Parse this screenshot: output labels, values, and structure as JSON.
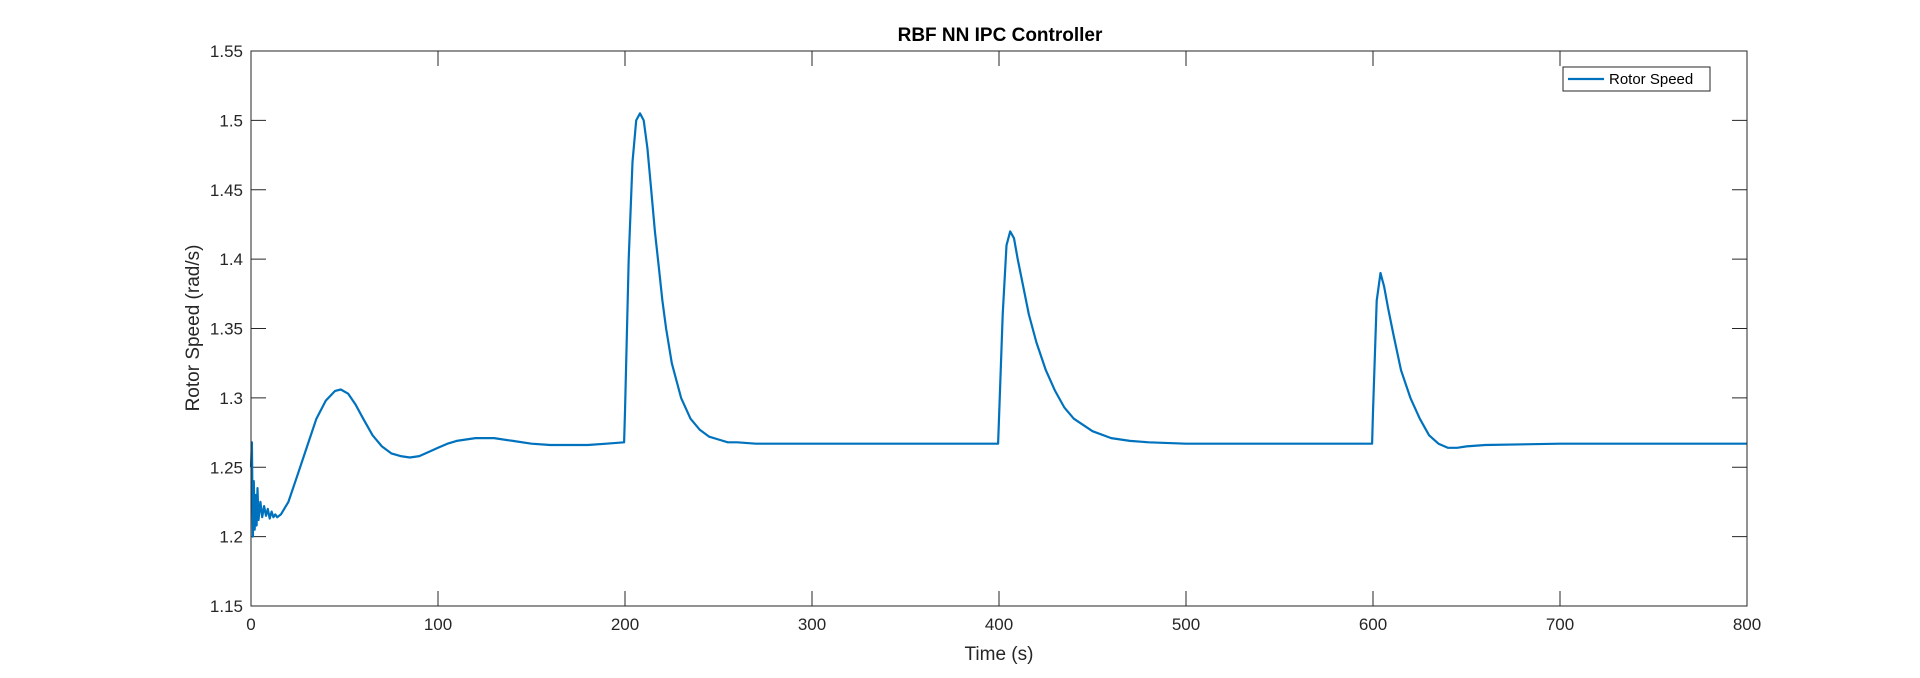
{
  "chart_data": {
    "type": "line",
    "title": "RBF NN IPC Controller",
    "xlabel": "Time (s)",
    "ylabel": "Rotor Speed (rad/s)",
    "xlim": [
      0,
      800
    ],
    "ylim": [
      1.15,
      1.55
    ],
    "xticks": [
      0,
      100,
      200,
      300,
      400,
      500,
      600,
      700,
      800
    ],
    "yticks": [
      1.15,
      1.2,
      1.25,
      1.3,
      1.35,
      1.4,
      1.45,
      1.5,
      1.55
    ],
    "xtick_labels": [
      "0",
      "100",
      "200",
      "300",
      "400",
      "500",
      "600",
      "700",
      "800"
    ],
    "ytick_labels": [
      "1.15",
      "1.2",
      "1.25",
      "1.3",
      "1.35",
      "1.4",
      "1.45",
      "1.5",
      "1.55"
    ],
    "grid": false,
    "legend_position": "top-right",
    "series": [
      {
        "name": "Rotor Speed",
        "color": "#0072BD",
        "x": [
          0,
          0.5,
          1,
          1.5,
          2,
          2.5,
          3,
          3.5,
          4,
          5,
          6,
          7,
          8,
          9,
          10,
          11,
          12,
          13,
          14,
          16,
          20,
          25,
          30,
          35,
          40,
          45,
          48,
          52,
          56,
          60,
          65,
          70,
          75,
          80,
          85,
          90,
          95,
          100,
          105,
          110,
          115,
          120,
          125,
          130,
          140,
          150,
          160,
          170,
          180,
          190,
          199.5,
          200,
          202,
          204,
          206,
          208,
          210,
          212,
          214,
          216,
          218,
          220,
          222,
          225,
          230,
          235,
          240,
          245,
          250,
          255,
          260,
          270,
          300,
          350,
          399.5,
          400,
          402,
          404,
          406,
          408,
          410,
          413,
          416,
          420,
          425,
          430,
          435,
          440,
          450,
          460,
          470,
          480,
          500,
          550,
          599.5,
          600,
          602,
          604,
          606,
          608,
          611,
          615,
          620,
          625,
          630,
          635,
          640,
          645,
          650,
          660,
          700,
          750,
          800
        ],
        "y": [
          1.25,
          1.268,
          1.2,
          1.24,
          1.205,
          1.23,
          1.208,
          1.235,
          1.212,
          1.225,
          1.214,
          1.222,
          1.215,
          1.22,
          1.213,
          1.218,
          1.214,
          1.216,
          1.214,
          1.216,
          1.225,
          1.245,
          1.265,
          1.285,
          1.298,
          1.305,
          1.306,
          1.303,
          1.295,
          1.285,
          1.273,
          1.265,
          1.26,
          1.258,
          1.257,
          1.258,
          1.261,
          1.264,
          1.267,
          1.269,
          1.27,
          1.271,
          1.271,
          1.271,
          1.269,
          1.267,
          1.266,
          1.266,
          1.266,
          1.267,
          1.268,
          1.29,
          1.4,
          1.47,
          1.5,
          1.505,
          1.5,
          1.48,
          1.45,
          1.42,
          1.395,
          1.37,
          1.35,
          1.325,
          1.3,
          1.285,
          1.277,
          1.272,
          1.27,
          1.268,
          1.268,
          1.267,
          1.267,
          1.267,
          1.267,
          1.285,
          1.36,
          1.41,
          1.42,
          1.415,
          1.4,
          1.38,
          1.36,
          1.34,
          1.32,
          1.305,
          1.293,
          1.285,
          1.276,
          1.271,
          1.269,
          1.268,
          1.267,
          1.267,
          1.267,
          1.29,
          1.37,
          1.39,
          1.38,
          1.365,
          1.345,
          1.32,
          1.3,
          1.285,
          1.273,
          1.267,
          1.264,
          1.264,
          1.265,
          1.266,
          1.267,
          1.267,
          1.267
        ]
      }
    ]
  }
}
